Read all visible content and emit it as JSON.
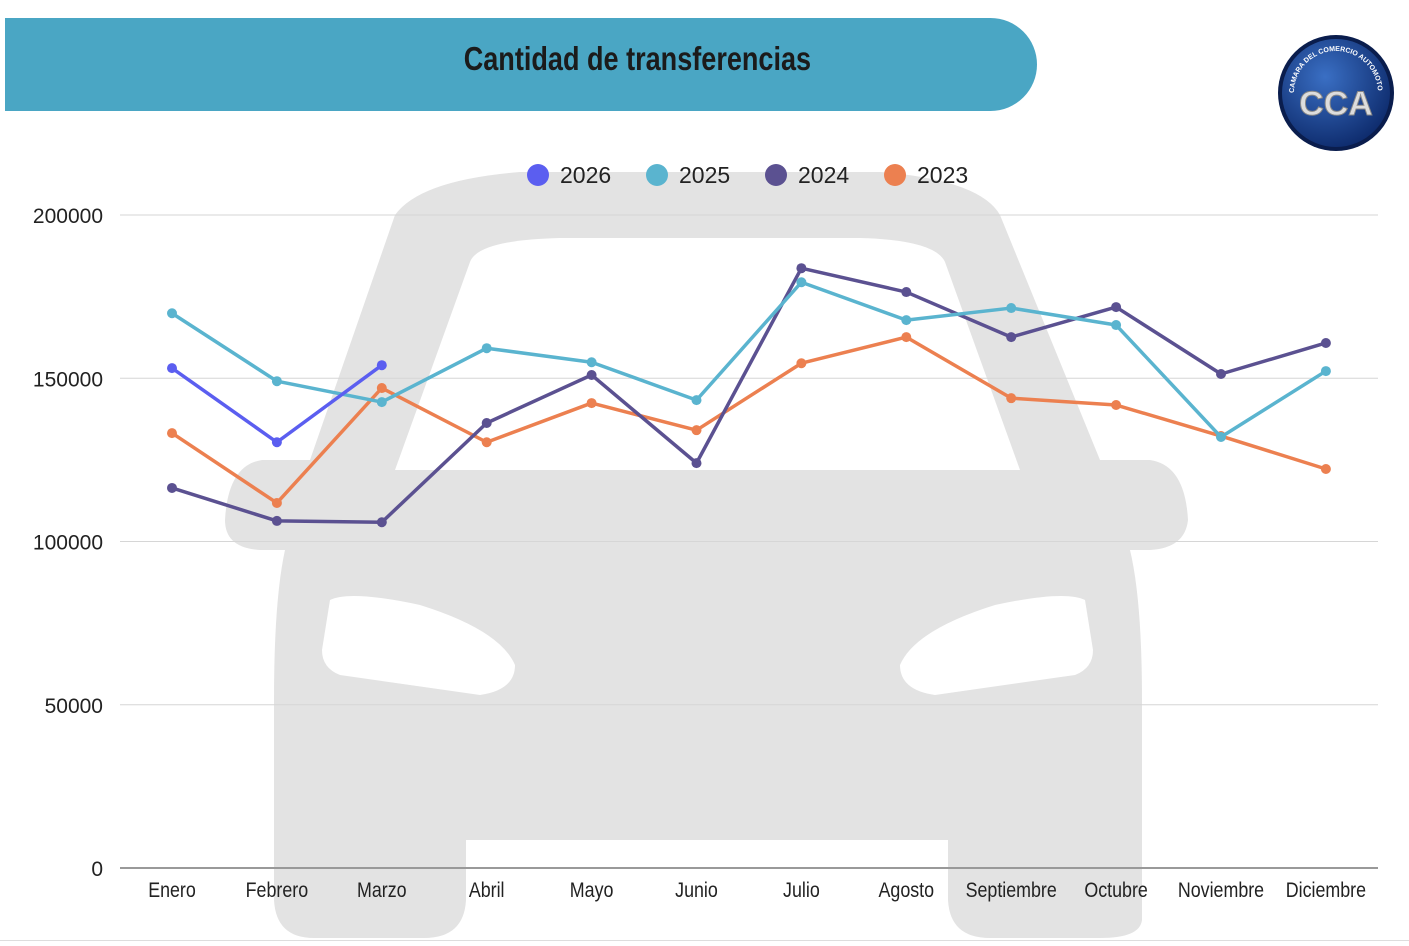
{
  "logo_text": {
    "initials": "CCA",
    "ring": "CAMARA DEL COMERCIO AUTOMOTOR"
  },
  "chart_data": {
    "type": "line",
    "title": "Cantidad de transferencias",
    "xlabel": "",
    "ylabel": "",
    "categories": [
      "Enero",
      "Febrero",
      "Marzo",
      "Abril",
      "Mayo",
      "Junio",
      "Julio",
      "Agosto",
      "Septiembre",
      "Octubre",
      "Noviembre",
      "Diciembre"
    ],
    "ylim": [
      0,
      200000
    ],
    "yticks": [
      0,
      50000,
      100000,
      150000,
      200000
    ],
    "yticklabels": [
      "0",
      "50000",
      "100000",
      "150000",
      "200000"
    ],
    "grid": true,
    "legend_position": "top-center",
    "series": [
      {
        "name": "2026",
        "color": "#5b5ef0",
        "values": [
          153100,
          130400,
          154000,
          null,
          null,
          null,
          null,
          null,
          null,
          null,
          null,
          null
        ]
      },
      {
        "name": "2025",
        "color": "#5ab4cf",
        "values": [
          169900,
          149100,
          142700,
          159200,
          154900,
          143300,
          179400,
          167800,
          171500,
          166300,
          132000,
          152200
        ]
      },
      {
        "name": "2024",
        "color": "#5b5191",
        "values": [
          116400,
          106300,
          105900,
          136300,
          151000,
          124000,
          183700,
          176400,
          162600,
          171800,
          151300,
          160800
        ]
      },
      {
        "name": "2023",
        "color": "#ec8050",
        "values": [
          133200,
          111800,
          147000,
          130400,
          142400,
          134100,
          154600,
          162600,
          143900,
          141800,
          132300,
          122200
        ]
      }
    ]
  }
}
